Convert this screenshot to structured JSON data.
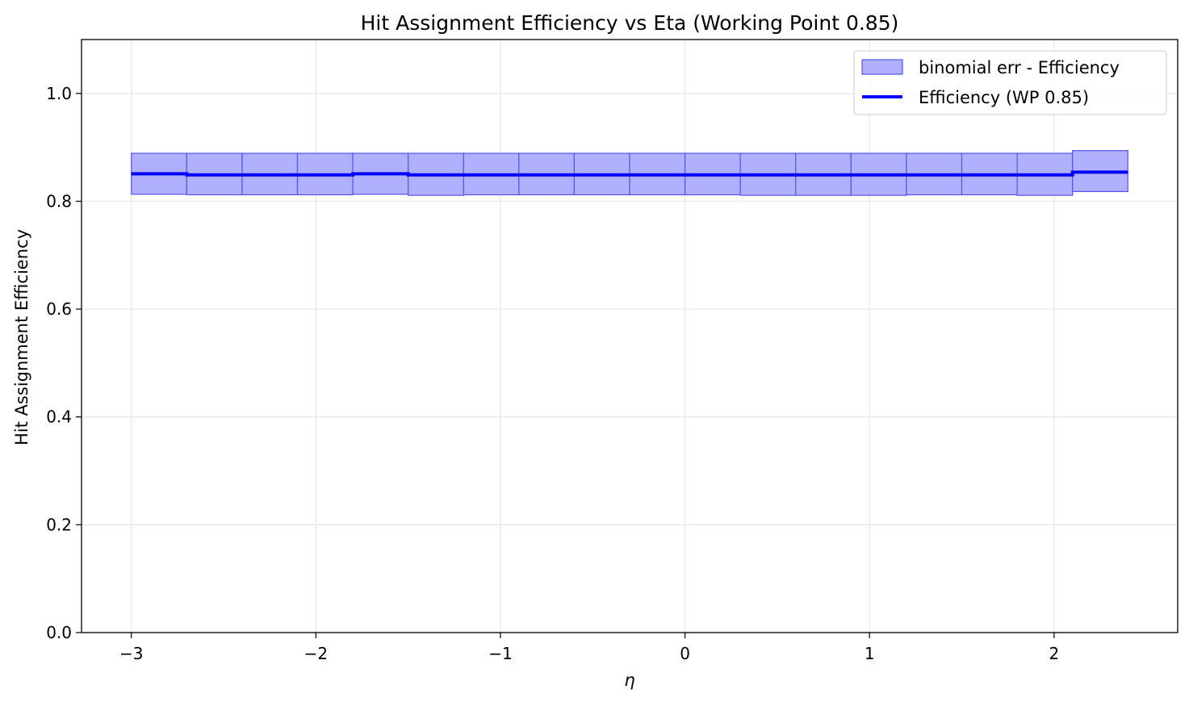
{
  "chart_data": {
    "type": "line",
    "title": "Hit Assignment Efficiency vs Eta (Working Point 0.85)",
    "xlabel": "η",
    "ylabel": "Hit Assignment Efficiency",
    "xlim": [
      -3.27,
      2.67
    ],
    "ylim": [
      0.0,
      1.1
    ],
    "xticks": [
      {
        "value": -3,
        "label": "−3"
      },
      {
        "value": -2,
        "label": "−2"
      },
      {
        "value": -1,
        "label": "−1"
      },
      {
        "value": 0,
        "label": "0"
      },
      {
        "value": 1,
        "label": "1"
      },
      {
        "value": 2,
        "label": "2"
      }
    ],
    "yticks": [
      {
        "value": 0.0,
        "label": "0.0"
      },
      {
        "value": 0.2,
        "label": "0.2"
      },
      {
        "value": 0.4,
        "label": "0.4"
      },
      {
        "value": 0.6,
        "label": "0.6"
      },
      {
        "value": 0.8,
        "label": "0.8"
      },
      {
        "value": 1.0,
        "label": "1.0"
      }
    ],
    "grid": true,
    "legend_position": "upper right",
    "legend": [
      {
        "label": "binomial err - Efficiency",
        "kind": "patch"
      },
      {
        "label": "Efficiency (WP 0.85)",
        "kind": "line"
      }
    ],
    "bin_edges": [
      -3.0,
      -2.7,
      -2.4,
      -2.1,
      -1.8,
      -1.5,
      -1.2,
      -0.9,
      -0.6,
      -0.3,
      0.0,
      0.3,
      0.6,
      0.9,
      1.2,
      1.5,
      1.8,
      2.1,
      2.4
    ],
    "series": [
      {
        "name": "Efficiency (WP 0.85)",
        "color": "#0000ff",
        "values": [
          0.851,
          0.849,
          0.849,
          0.849,
          0.851,
          0.849,
          0.849,
          0.849,
          0.849,
          0.849,
          0.849,
          0.849,
          0.849,
          0.849,
          0.849,
          0.849,
          0.849,
          0.854
        ],
        "err_low": [
          0.813,
          0.812,
          0.812,
          0.812,
          0.813,
          0.811,
          0.812,
          0.812,
          0.812,
          0.812,
          0.812,
          0.811,
          0.811,
          0.811,
          0.812,
          0.812,
          0.811,
          0.818
        ],
        "err_high": [
          0.889,
          0.889,
          0.889,
          0.889,
          0.889,
          0.889,
          0.889,
          0.889,
          0.889,
          0.889,
          0.889,
          0.889,
          0.889,
          0.889,
          0.889,
          0.889,
          0.889,
          0.894
        ]
      }
    ],
    "colors": {
      "band_fill": "#b0b0ff",
      "band_edge": "#5555ee",
      "line": "#0000ff",
      "grid": "#e6e6e6"
    }
  }
}
